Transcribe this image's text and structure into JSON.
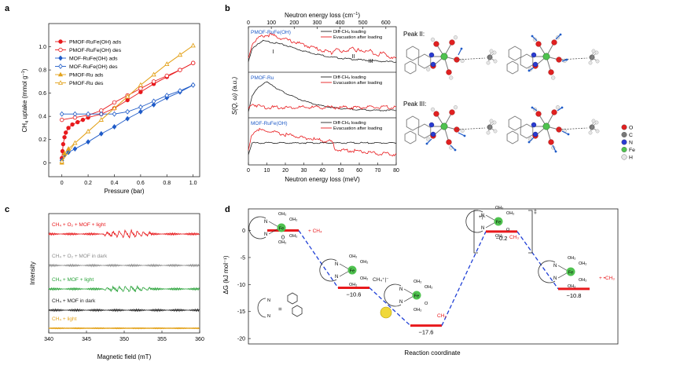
{
  "panels": {
    "a": "a",
    "b": "b",
    "c": "c",
    "d": "d"
  },
  "colors": {
    "red": "#e8191c",
    "blue": "#1f5bc8",
    "gold": "#e3a21a",
    "green": "#2aa33a",
    "grey": "#8c8c8c",
    "black": "#222222",
    "fe": "#4fc24f",
    "o": "#e02020",
    "c": "#9a9a9a",
    "n": "#2a3bd1",
    "h": "#e6e6e6",
    "bar": "#e8191c",
    "dash": "#1f3fd6",
    "cu": "#f0d83a"
  },
  "panel_a": {
    "xlabel": "Pressure (bar)",
    "ylabel_main": "CH",
    "ylabel_sub": "4",
    "ylabel_rest": " uptake (mmol g",
    "ylabel_sup": "−1",
    "ylabel_end": ")",
    "legend": [
      "PMOF-RuFe(OH) ads",
      "PMOF-RuFe(OH) des",
      "MOF-RuFe(OH) ads",
      "MOF-RuFe(OH) des",
      "PMOF-Ru ads",
      "PMOF-Ru des"
    ]
  },
  "panel_b": {
    "top_axis_label": "Neutron energy loss (cm",
    "top_axis_sup": "−1",
    "top_axis_end": ")",
    "bottom_axis_label": "Neutron energy loss (meV)",
    "ylabel": "S(Q, ω) (a.u.)",
    "subpanels": [
      {
        "title": "PMOF-RuFe(OH)",
        "legend": [
          "Diff-CH₄ loading",
          "Evacuation after loading"
        ],
        "annotations": [
          "I",
          "II",
          "III"
        ]
      },
      {
        "title": "PMOF-Ru",
        "legend": [
          "Diff-CH₄ loading",
          "Evacuation after loading"
        ]
      },
      {
        "title": "MOF-RuFe(OH)",
        "legend": [
          "Diff-CH₄ loading",
          "Evacuation after loading"
        ]
      }
    ],
    "peak2_label": "Peak II:",
    "peak3_label": "Peak III:",
    "element_legend": [
      "O",
      "C",
      "N",
      "Fe",
      "H"
    ]
  },
  "panel_c": {
    "xlabel": "Magnetic field (mT)",
    "ylabel": "Intensity",
    "traces": [
      {
        "label": "CH₄ + O₂ + MOF + light",
        "color": "#e8191c"
      },
      {
        "label": "CH₄ + O₂ + MOF in dark",
        "color": "#8c8c8c"
      },
      {
        "label": "CH₄ + MOF + light",
        "color": "#2aa33a"
      },
      {
        "label": "CH₄ + MOF in dark",
        "color": "#222222"
      },
      {
        "label": "CH₄ + light",
        "color": "#e3a21a"
      }
    ]
  },
  "panel_d": {
    "xlabel": "Reaction coordinate",
    "ylabel": "ΔG (kJ mol⁻¹)",
    "states": [
      {
        "value": "0",
        "species": "+ CH₄"
      },
      {
        "value": "−10.6",
        "species": "CH₄⁺|⁻"
      },
      {
        "value": "−17.6",
        "species": "CH₃"
      },
      {
        "value": "−0.2",
        "species": "CH₃"
      },
      {
        "value": "−10.8",
        "species": "+ •CH₃"
      }
    ],
    "bracket_tl": "+|−",
    "bracket_tr": "‡",
    "legend_eq": "=",
    "atom_labels": {
      "fe": "Fe",
      "n": "N",
      "oh2": "OH₂",
      "oh": "OH",
      "h": "H",
      "o": "O"
    }
  },
  "chart_data": [
    {
      "type": "line",
      "panel": "a",
      "xlabel": "Pressure (bar)",
      "ylabel": "CH4 uptake (mmol g−1)",
      "xlim": [
        -0.1,
        1.05
      ],
      "ylim": [
        -0.12,
        1.2
      ],
      "xticks": [
        0,
        0.2,
        0.4,
        0.6,
        0.8,
        1.0
      ],
      "yticks": [
        0,
        0.2,
        0.4,
        0.6,
        0.8,
        1.0
      ],
      "series": [
        {
          "name": "PMOF-RuFe(OH) ads",
          "color": "#e8191c",
          "marker": "circle-filled",
          "x": [
            0.0,
            0.005,
            0.01,
            0.02,
            0.03,
            0.05,
            0.08,
            0.12,
            0.16,
            0.2,
            0.3,
            0.4,
            0.5,
            0.6,
            0.7,
            0.8,
            0.9,
            1.0
          ],
          "y": [
            0.04,
            0.1,
            0.16,
            0.22,
            0.26,
            0.3,
            0.33,
            0.35,
            0.37,
            0.39,
            0.42,
            0.47,
            0.54,
            0.61,
            0.68,
            0.74,
            0.8,
            0.86
          ]
        },
        {
          "name": "PMOF-RuFe(OH) des",
          "color": "#e8191c",
          "marker": "circle-open",
          "x": [
            0.0,
            0.1,
            0.2,
            0.3,
            0.4,
            0.5,
            0.6,
            0.7,
            0.8,
            0.9,
            1.0
          ],
          "y": [
            0.37,
            0.39,
            0.41,
            0.45,
            0.52,
            0.58,
            0.64,
            0.7,
            0.75,
            0.8,
            0.86
          ]
        },
        {
          "name": "MOF-RuFe(OH) ads",
          "color": "#1f5bc8",
          "marker": "diamond-filled",
          "x": [
            0.0,
            0.02,
            0.05,
            0.1,
            0.2,
            0.3,
            0.4,
            0.5,
            0.6,
            0.7,
            0.8,
            0.9,
            1.0
          ],
          "y": [
            0.02,
            0.07,
            0.09,
            0.12,
            0.18,
            0.25,
            0.31,
            0.38,
            0.44,
            0.5,
            0.56,
            0.61,
            0.67
          ]
        },
        {
          "name": "MOF-RuFe(OH) des",
          "color": "#1f5bc8",
          "marker": "diamond-open",
          "x": [
            0.0,
            0.1,
            0.2,
            0.3,
            0.4,
            0.5,
            0.6,
            0.7,
            0.8,
            0.9,
            1.0
          ],
          "y": [
            0.42,
            0.42,
            0.42,
            0.42,
            0.42,
            0.44,
            0.48,
            0.53,
            0.58,
            0.62,
            0.67
          ]
        },
        {
          "name": "PMOF-Ru ads",
          "color": "#e3a21a",
          "marker": "triangle-filled",
          "x": [
            0.0,
            0.02,
            0.05,
            0.1,
            0.2,
            0.3,
            0.4,
            0.5,
            0.6,
            0.7,
            0.8,
            0.9,
            1.0
          ],
          "y": [
            0.0,
            0.08,
            0.12,
            0.17,
            0.27,
            0.37,
            0.47,
            0.57,
            0.67,
            0.76,
            0.85,
            0.93,
            1.01
          ]
        },
        {
          "name": "PMOF-Ru des",
          "color": "#e3a21a",
          "marker": "triangle-open",
          "x": [
            0.0,
            0.1,
            0.2,
            0.3,
            0.4,
            0.5,
            0.6,
            0.7,
            0.8,
            0.9,
            1.0
          ],
          "y": [
            0.01,
            0.17,
            0.27,
            0.37,
            0.47,
            0.57,
            0.67,
            0.76,
            0.85,
            0.93,
            1.01
          ]
        }
      ]
    },
    {
      "type": "line",
      "panel": "b",
      "xlabel": "Neutron energy loss (meV)",
      "x2label": "Neutron energy loss (cm−1)",
      "ylabel": "S(Q, ω) (a.u.)",
      "xlim": [
        0,
        80
      ],
      "xticks": [
        0,
        10,
        20,
        30,
        40,
        50,
        60,
        70,
        80
      ],
      "x2ticks": [
        0,
        100,
        200,
        300,
        400,
        500,
        600
      ],
      "series": [
        {
          "name": "PMOF-RuFe(OH) Diff-CH4 loading",
          "color": "#222222",
          "subpanel": 0,
          "x": [
            0,
            2,
            5,
            8,
            12,
            15,
            20,
            25,
            30,
            35,
            40,
            45,
            50,
            55,
            60,
            65,
            70,
            75,
            80
          ],
          "y": [
            0.2,
            0.55,
            0.7,
            0.78,
            0.75,
            0.72,
            0.66,
            0.58,
            0.5,
            0.44,
            0.38,
            0.33,
            0.3,
            0.28,
            0.26,
            0.24,
            0.22,
            0.21,
            0.2
          ]
        },
        {
          "name": "PMOF-RuFe(OH) Evacuation after loading",
          "color": "#e8191c",
          "subpanel": 0,
          "x": [
            0,
            2,
            5,
            8,
            12,
            15,
            20,
            25,
            30,
            35,
            40,
            45,
            48,
            50,
            53,
            56,
            58,
            60,
            63,
            66,
            70,
            73,
            76,
            80
          ],
          "y": [
            0.3,
            0.7,
            0.85,
            0.92,
            0.95,
            0.9,
            0.82,
            0.75,
            0.67,
            0.6,
            0.52,
            0.45,
            0.6,
            0.45,
            0.5,
            0.62,
            0.45,
            0.55,
            0.48,
            0.5,
            0.4,
            0.45,
            0.35,
            0.3
          ]
        },
        {
          "name": "PMOF-Ru Diff-CH4 loading",
          "color": "#222222",
          "subpanel": 1,
          "x": [
            0,
            2,
            5,
            8,
            10,
            13,
            16,
            20,
            25,
            30,
            35,
            40,
            45,
            50,
            55,
            60,
            65,
            70,
            75,
            80
          ],
          "y": [
            0.1,
            0.5,
            0.75,
            0.85,
            0.9,
            0.82,
            0.7,
            0.6,
            0.48,
            0.38,
            0.3,
            0.24,
            0.2,
            0.17,
            0.15,
            0.14,
            0.13,
            0.12,
            0.12,
            0.12
          ]
        },
        {
          "name": "PMOF-Ru Evacuation after loading",
          "color": "#e8191c",
          "subpanel": 1,
          "x": [
            0,
            2,
            5,
            10,
            20,
            30,
            40,
            50,
            60,
            70,
            80
          ],
          "y": [
            0.15,
            0.3,
            0.25,
            0.2,
            0.2,
            0.2,
            0.2,
            0.2,
            0.2,
            0.2,
            0.2
          ]
        },
        {
          "name": "MOF-RuFe(OH) Diff-CH4 loading",
          "color": "#222222",
          "subpanel": 2,
          "x": [
            0,
            2,
            5,
            10,
            20,
            30,
            40,
            50,
            60,
            70,
            80
          ],
          "y": [
            0.2,
            0.5,
            0.5,
            0.5,
            0.5,
            0.5,
            0.5,
            0.5,
            0.5,
            0.5,
            0.5
          ]
        },
        {
          "name": "MOF-RuFe(OH) Evacuation after loading",
          "color": "#e8191c",
          "subpanel": 2,
          "x": [
            0,
            2,
            5,
            8,
            12,
            15,
            20,
            25,
            30,
            35,
            40,
            45,
            47,
            50,
            55,
            60,
            65,
            70,
            75,
            80
          ],
          "y": [
            0.3,
            0.75,
            0.85,
            0.82,
            0.8,
            0.76,
            0.72,
            0.68,
            0.64,
            0.6,
            0.56,
            0.54,
            0.35,
            0.3,
            0.3,
            0.28,
            0.25,
            0.22,
            0.2,
            0.2
          ]
        }
      ]
    },
    {
      "type": "line",
      "panel": "c",
      "xlabel": "Magnetic field (mT)",
      "ylabel": "Intensity",
      "xlim": [
        340,
        360
      ],
      "xticks": [
        340,
        345,
        350,
        355,
        360
      ],
      "series": [
        {
          "name": "CH4 + O2 + MOF + light",
          "color": "#e8191c",
          "offset": 4,
          "peaks_at": [
            347.6,
            348.4,
            349.2,
            350.0,
            350.8,
            351.6,
            352.4,
            353.2
          ]
        },
        {
          "name": "CH4 + O2 + MOF in dark",
          "color": "#8c8c8c",
          "offset": 3,
          "peaks_at": []
        },
        {
          "name": "CH4 + MOF + light",
          "color": "#2aa33a",
          "offset": 2,
          "peaks_at": [
            347.6,
            348.4,
            349.2,
            350.0,
            350.8,
            351.6,
            352.4,
            353.2
          ]
        },
        {
          "name": "CH4 + MOF in dark",
          "color": "#222222",
          "offset": 1,
          "peaks_at": []
        },
        {
          "name": "CH4 + light",
          "color": "#e3a21a",
          "offset": 0,
          "peaks_at": []
        }
      ]
    },
    {
      "type": "line",
      "panel": "d",
      "xlabel": "Reaction coordinate",
      "ylabel": "ΔG (kJ mol−1)",
      "ylim": [
        -21,
        4
      ],
      "yticks": [
        0,
        -5,
        -10,
        -15,
        -20
      ],
      "x": [
        1,
        2,
        3,
        4,
        5
      ],
      "values": [
        0,
        -10.6,
        -17.6,
        -0.2,
        -10.8
      ]
    }
  ]
}
